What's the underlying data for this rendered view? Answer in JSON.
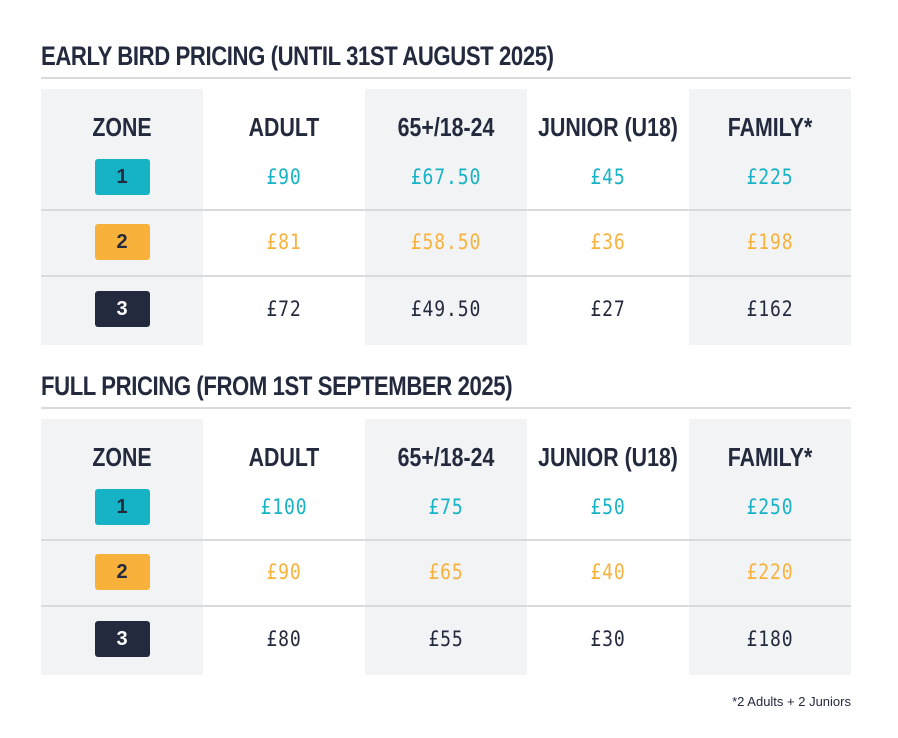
{
  "colors": {
    "zone1": "#16b3c6",
    "zone2": "#f8b23c",
    "zone3": "#232a3e"
  },
  "tables": [
    {
      "title": "EARLY BIRD PRICING (UNTIL 31ST AUGUST 2025)",
      "headers": [
        "ZONE",
        "ADULT",
        "65+/18-24",
        "JUNIOR (U18)",
        "FAMILY*"
      ],
      "rows": [
        {
          "zone": "1",
          "prices": [
            "£90",
            "£67.50",
            "£45",
            "£225"
          ]
        },
        {
          "zone": "2",
          "prices": [
            "£81",
            "£58.50",
            "£36",
            "£198"
          ]
        },
        {
          "zone": "3",
          "prices": [
            "£72",
            "£49.50",
            "£27",
            "£162"
          ]
        }
      ]
    },
    {
      "title": "FULL PRICING (FROM 1ST SEPTEMBER 2025)",
      "headers": [
        "ZONE",
        "ADULT",
        "65+/18-24",
        "JUNIOR (U18)",
        "FAMILY*"
      ],
      "rows": [
        {
          "zone": "1",
          "prices": [
            "£100",
            "£75",
            "£50",
            "£250"
          ]
        },
        {
          "zone": "2",
          "prices": [
            "£90",
            "£65",
            "£40",
            "£220"
          ]
        },
        {
          "zone": "3",
          "prices": [
            "£80",
            "£55",
            "£30",
            "£180"
          ]
        }
      ]
    }
  ],
  "footnote": "*2 Adults + 2 Juniors"
}
